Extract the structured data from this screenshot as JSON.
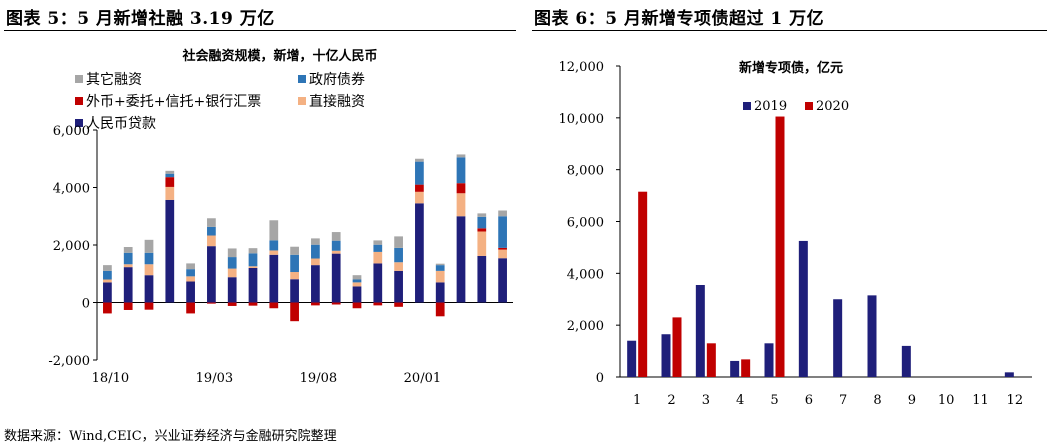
{
  "panel_titles": {
    "left": "图表 5：5 月新增社融 3.19 万亿",
    "right": "图表 6：5 月新增专项债超过 1 万亿"
  },
  "source": "数据来源：Wind,CEIC，兴业证券经济与金融研究院整理",
  "chart_data": [
    {
      "type": "bar",
      "stacked": true,
      "title": "社会融资规模，新增，十亿人民币",
      "ylim": [
        -2000,
        6000
      ],
      "yticks": [
        "-2,000",
        "0",
        "2,000",
        "4,000",
        "6,000"
      ],
      "ytick_values": [
        -2000,
        0,
        2000,
        4000,
        6000
      ],
      "x_tick_labels": [
        {
          "label": "18/10",
          "index": 0
        },
        {
          "label": "19/03",
          "index": 5
        },
        {
          "label": "19/08",
          "index": 10
        },
        {
          "label": "20/01",
          "index": 15
        }
      ],
      "categories": [
        "2018-10",
        "2018-11",
        "2018-12",
        "2019-01",
        "2019-02",
        "2019-03",
        "2019-04",
        "2019-05",
        "2019-06",
        "2019-07",
        "2019-08",
        "2019-09",
        "2019-10",
        "2019-11",
        "2019-12",
        "2020-01",
        "2020-02",
        "2020-03",
        "2020-04",
        "2020-05"
      ],
      "legend": [
        "其它融资",
        "政府债券",
        "外币+委托+信托+银行汇票",
        "直接融资",
        "人民币贷款"
      ],
      "series": [
        {
          "name": "人民币贷款",
          "color": "#1f1f7a",
          "values": [
            700,
            1230,
            950,
            3570,
            730,
            1960,
            880,
            1200,
            1660,
            810,
            1300,
            1700,
            560,
            1360,
            1100,
            3450,
            700,
            3000,
            1620,
            1540
          ]
        },
        {
          "name": "直接融资",
          "color": "#f4b183",
          "values": [
            100,
            100,
            380,
            450,
            180,
            370,
            300,
            60,
            150,
            250,
            230,
            100,
            140,
            400,
            300,
            400,
            400,
            800,
            850,
            300
          ]
        },
        {
          "name": "外币+委托+信托+银行汇票",
          "color": "#c00000",
          "values": [
            -380,
            -260,
            -250,
            340,
            -380,
            -40,
            -120,
            -110,
            -200,
            -650,
            -100,
            -70,
            -200,
            -100,
            -150,
            250,
            -480,
            350,
            110,
            60
          ]
        },
        {
          "name": "政府债券",
          "color": "#2e75b6",
          "values": [
            300,
            400,
            400,
            120,
            250,
            300,
            400,
            450,
            350,
            600,
            480,
            350,
            100,
            250,
            500,
            800,
            200,
            900,
            400,
            1100
          ]
        },
        {
          "name": "其他融资",
          "color": "#a6a6a6",
          "values": [
            200,
            200,
            450,
            100,
            200,
            300,
            300,
            180,
            700,
            280,
            220,
            300,
            150,
            150,
            400,
            100,
            50,
            100,
            120,
            200
          ]
        }
      ]
    },
    {
      "type": "bar",
      "title": "新增专项债，亿元",
      "ylim": [
        0,
        12000
      ],
      "yticks": [
        "0",
        "2,000",
        "4,000",
        "6,000",
        "8,000",
        "10,000",
        "12,000"
      ],
      "ytick_values": [
        0,
        2000,
        4000,
        6000,
        8000,
        10000,
        12000
      ],
      "categories": [
        "1",
        "2",
        "3",
        "4",
        "5",
        "6",
        "7",
        "8",
        "9",
        "10",
        "11",
        "12"
      ],
      "series": [
        {
          "name": "2019",
          "color": "#1f1f7a",
          "values": [
            1400,
            1650,
            3550,
            620,
            1300,
            5250,
            3000,
            3150,
            1200,
            0,
            0,
            180
          ]
        },
        {
          "name": "2020",
          "color": "#c00000",
          "values": [
            7150,
            2300,
            1300,
            680,
            10050,
            null,
            null,
            null,
            null,
            null,
            null,
            null
          ]
        }
      ]
    }
  ]
}
